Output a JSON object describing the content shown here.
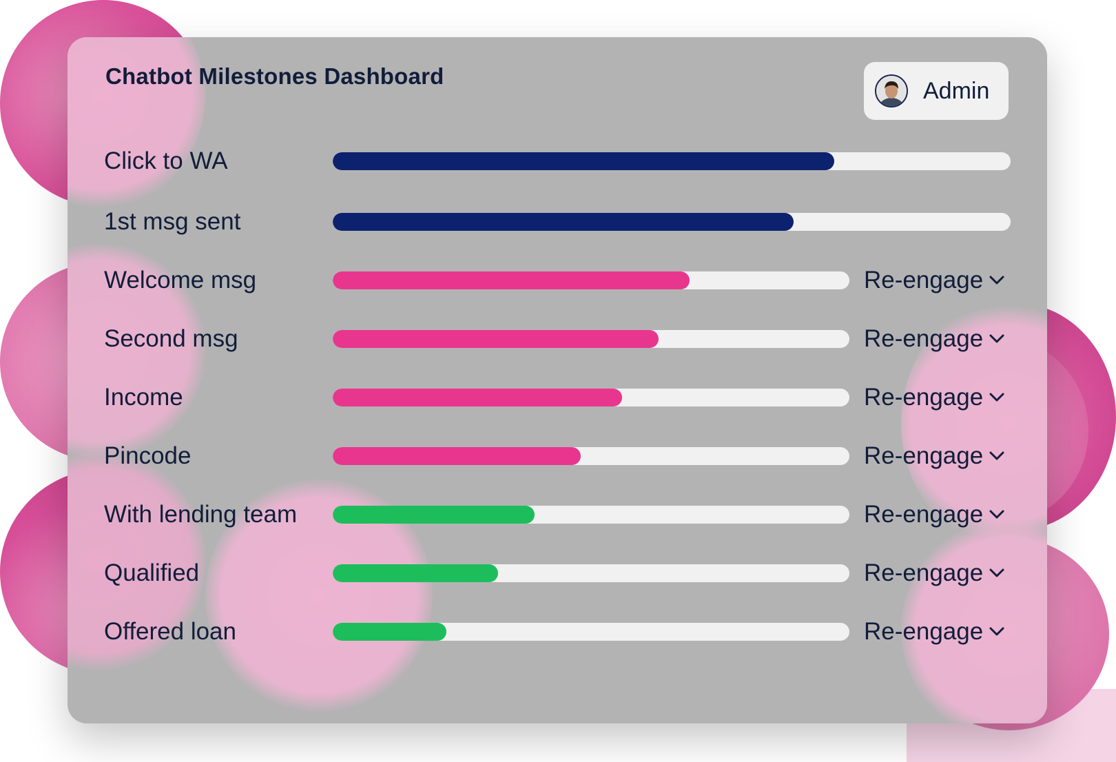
{
  "dashboard": {
    "title": "Chatbot Milestones Dashboard",
    "user": {
      "name": "Admin",
      "avatar_icon": "user-avatar"
    },
    "colors": {
      "navy": "#0c226e",
      "pink": "#e8368f",
      "green": "#1ebd5c",
      "track": "#f1f1f1"
    },
    "action_label": "Re-engage",
    "milestones": [
      {
        "label": "Click to WA",
        "progress": 0.74,
        "color": "navy",
        "has_action": false
      },
      {
        "label": "1st msg sent",
        "progress": 0.68,
        "color": "navy",
        "has_action": false
      },
      {
        "label": "Welcome msg",
        "progress": 0.69,
        "color": "pink",
        "has_action": true
      },
      {
        "label": "Second msg",
        "progress": 0.63,
        "color": "pink",
        "has_action": true
      },
      {
        "label": "Income",
        "progress": 0.56,
        "color": "pink",
        "has_action": true
      },
      {
        "label": "Pincode",
        "progress": 0.48,
        "color": "pink",
        "has_action": true
      },
      {
        "label": "With lending team",
        "progress": 0.39,
        "color": "green",
        "has_action": true
      },
      {
        "label": "Qualified",
        "progress": 0.32,
        "color": "green",
        "has_action": true
      },
      {
        "label": "Offered loan",
        "progress": 0.22,
        "color": "green",
        "has_action": true
      }
    ]
  }
}
